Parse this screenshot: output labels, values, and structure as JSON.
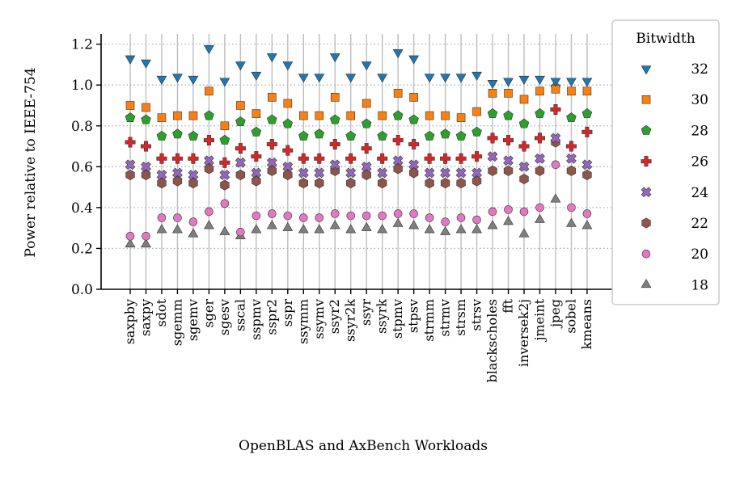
{
  "chart_data": {
    "type": "scatter",
    "xlabel": "OpenBLAS and AxBench Workloads",
    "ylabel": "Power relative to IEEE-754",
    "ylim": [
      0,
      1.25
    ],
    "yticks": [
      0.0,
      0.2,
      0.4,
      0.6,
      0.8,
      1.0,
      1.2
    ],
    "ytick_labels": [
      "0.0",
      "0.2",
      "0.4",
      "0.6",
      "0.8",
      "1.0",
      "1.2"
    ],
    "grid": "horizontal dotted",
    "legend": {
      "title": "Bitwidth",
      "position": "right"
    },
    "categories": [
      "saxpby",
      "saxpy",
      "sdot",
      "sgemm",
      "sgemv",
      "sger",
      "sgesv",
      "sscal",
      "sspmv",
      "sspr2",
      "sspr",
      "ssymm",
      "ssymv",
      "ssyr2",
      "ssyr2k",
      "ssyr",
      "ssyrk",
      "stpmv",
      "stpsv",
      "strmm",
      "strmv",
      "strsm",
      "strsv",
      "blackscholes",
      "fft",
      "inversek2j",
      "jmeint",
      "jpeg",
      "sobel",
      "kmeans"
    ],
    "series": [
      {
        "name": "32",
        "marker": "triangle-down",
        "color": "#1f77b4",
        "values": [
          1.13,
          1.11,
          1.03,
          1.04,
          1.03,
          1.18,
          1.02,
          1.1,
          1.05,
          1.14,
          1.1,
          1.04,
          1.04,
          1.14,
          1.04,
          1.1,
          1.04,
          1.16,
          1.13,
          1.04,
          1.04,
          1.04,
          1.05,
          1.01,
          1.02,
          1.03,
          1.03,
          1.02,
          1.02,
          1.02
        ]
      },
      {
        "name": "30",
        "marker": "square",
        "color": "#ff7f0e",
        "values": [
          0.9,
          0.89,
          0.84,
          0.85,
          0.85,
          0.97,
          0.8,
          0.9,
          0.86,
          0.94,
          0.91,
          0.85,
          0.85,
          0.94,
          0.85,
          0.91,
          0.85,
          0.96,
          0.94,
          0.85,
          0.85,
          0.84,
          0.87,
          0.96,
          0.96,
          0.93,
          0.97,
          0.98,
          0.97,
          0.97
        ]
      },
      {
        "name": "28",
        "marker": "pentagon",
        "color": "#2ca02c",
        "values": [
          0.84,
          0.83,
          0.75,
          0.76,
          0.75,
          0.85,
          0.73,
          0.82,
          0.77,
          0.83,
          0.81,
          0.75,
          0.76,
          0.83,
          0.75,
          0.81,
          0.75,
          0.85,
          0.83,
          0.75,
          0.76,
          0.75,
          0.77,
          0.86,
          0.85,
          0.81,
          0.86,
          0.99,
          0.84,
          0.86
        ]
      },
      {
        "name": "26",
        "marker": "plus",
        "color": "#d62728",
        "values": [
          0.72,
          0.7,
          0.64,
          0.64,
          0.64,
          0.73,
          0.62,
          0.69,
          0.65,
          0.71,
          0.68,
          0.64,
          0.64,
          0.71,
          0.64,
          0.69,
          0.64,
          0.73,
          0.71,
          0.64,
          0.64,
          0.64,
          0.65,
          0.74,
          0.73,
          0.7,
          0.74,
          0.88,
          0.7,
          0.77
        ]
      },
      {
        "name": "24",
        "marker": "x",
        "color": "#9467bd",
        "values": [
          0.61,
          0.6,
          0.56,
          0.57,
          0.56,
          0.63,
          0.56,
          0.62,
          0.57,
          0.62,
          0.6,
          0.57,
          0.57,
          0.61,
          0.57,
          0.6,
          0.57,
          0.63,
          0.61,
          0.57,
          0.57,
          0.57,
          0.57,
          0.65,
          0.63,
          0.6,
          0.64,
          0.74,
          0.64,
          0.61
        ]
      },
      {
        "name": "22",
        "marker": "hexagon",
        "color": "#8c564b",
        "values": [
          0.56,
          0.56,
          0.52,
          0.53,
          0.52,
          0.59,
          0.51,
          0.56,
          0.53,
          0.58,
          0.56,
          0.52,
          0.52,
          0.58,
          0.52,
          0.56,
          0.52,
          0.59,
          0.57,
          0.52,
          0.52,
          0.52,
          0.53,
          0.58,
          0.58,
          0.54,
          0.58,
          0.72,
          0.58,
          0.56
        ]
      },
      {
        "name": "20",
        "marker": "circle",
        "color": "#e377c2",
        "values": [
          0.26,
          0.26,
          0.35,
          0.35,
          0.33,
          0.38,
          0.42,
          0.28,
          0.36,
          0.37,
          0.36,
          0.35,
          0.35,
          0.37,
          0.36,
          0.36,
          0.36,
          0.37,
          0.37,
          0.35,
          0.33,
          0.35,
          0.34,
          0.38,
          0.39,
          0.38,
          0.4,
          0.61,
          0.4,
          0.37
        ]
      },
      {
        "name": "18",
        "marker": "triangle-up",
        "color": "#7f7f7f",
        "values": [
          0.22,
          0.22,
          0.29,
          0.29,
          0.27,
          0.31,
          0.28,
          0.26,
          0.29,
          0.31,
          0.3,
          0.29,
          0.29,
          0.31,
          0.29,
          0.3,
          0.29,
          0.32,
          0.31,
          0.29,
          0.28,
          0.29,
          0.29,
          0.31,
          0.33,
          0.27,
          0.34,
          0.44,
          0.32,
          0.31
        ]
      }
    ]
  }
}
